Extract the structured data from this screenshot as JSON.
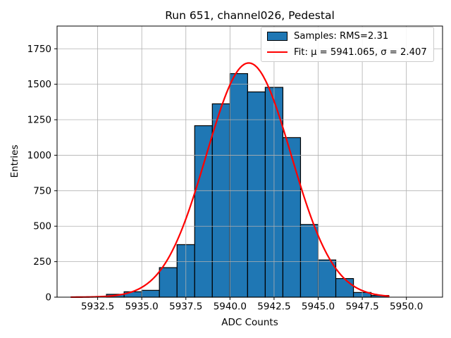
{
  "chart_data": {
    "type": "bar",
    "subtype": "histogram-with-gaussian-fit",
    "title": "Run 651, channel026, Pedestal",
    "xlabel": "ADC Counts",
    "ylabel": "Entries",
    "xlim": [
      5930.2,
      5952.05
    ],
    "ylim": [
      0,
      1910
    ],
    "xticks": [
      5932.5,
      5935.0,
      5937.5,
      5940.0,
      5942.5,
      5945.0,
      5947.5,
      5950.0
    ],
    "xtick_labels": [
      "5932.5",
      "5935.0",
      "5937.5",
      "5940.0",
      "5942.5",
      "5945.0",
      "5947.5",
      "5950.0"
    ],
    "yticks": [
      0,
      250,
      500,
      750,
      1000,
      1250,
      1500,
      1750
    ],
    "ytick_labels": [
      "0",
      "250",
      "500",
      "750",
      "1000",
      "1250",
      "1500",
      "1750"
    ],
    "grid": true,
    "grid_color": "#b0b0b0",
    "histogram": {
      "bin_start": 5933,
      "bin_width": 1,
      "counts": [
        20,
        38,
        48,
        208,
        370,
        1208,
        1362,
        1575,
        1446,
        1478,
        1124,
        512,
        262,
        131,
        33,
        12
      ],
      "fill_color": "#1f77b4",
      "edge_color": "#000000"
    },
    "fit": {
      "mu": 5941.065,
      "sigma": 2.407,
      "amplitude": 1650,
      "x_range": [
        5931,
        5949
      ],
      "color": "#ff0000"
    },
    "legend": {
      "position": "upper right",
      "entries": [
        "Samples: RMS=2.31",
        "Fit: μ = 5941.065, σ = 2.407"
      ]
    }
  }
}
